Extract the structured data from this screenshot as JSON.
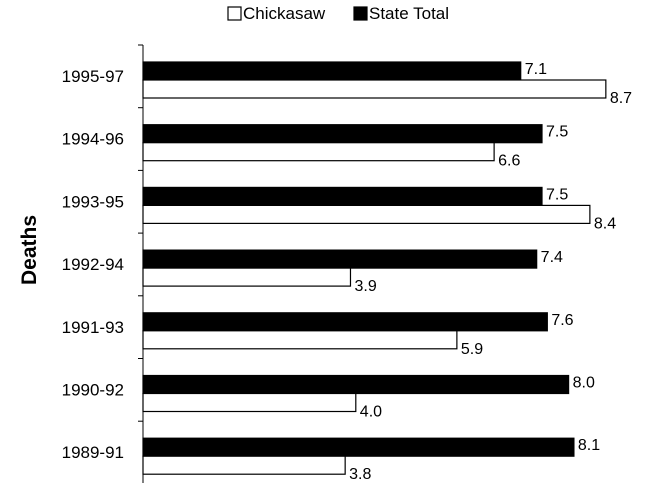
{
  "chart_data": {
    "type": "bar",
    "orientation": "horizontal",
    "title": "",
    "xlabel": "",
    "ylabel": "Deaths",
    "categories": [
      "1995-97",
      "1994-96",
      "1993-95",
      "1992-94",
      "1991-93",
      "1990-92",
      "1989-91"
    ],
    "series": [
      {
        "name": "Chickasaw",
        "color": "#ffffff",
        "values": [
          8.7,
          6.6,
          8.4,
          3.9,
          5.9,
          4.0,
          3.8
        ]
      },
      {
        "name": "State Total",
        "color": "#000000",
        "values": [
          7.1,
          7.5,
          7.5,
          7.4,
          7.6,
          8.0,
          8.1
        ]
      }
    ],
    "xlim": [
      0,
      9
    ],
    "grid": false,
    "legend_position": "top",
    "show_data_labels": true,
    "value_format": "0.0"
  }
}
